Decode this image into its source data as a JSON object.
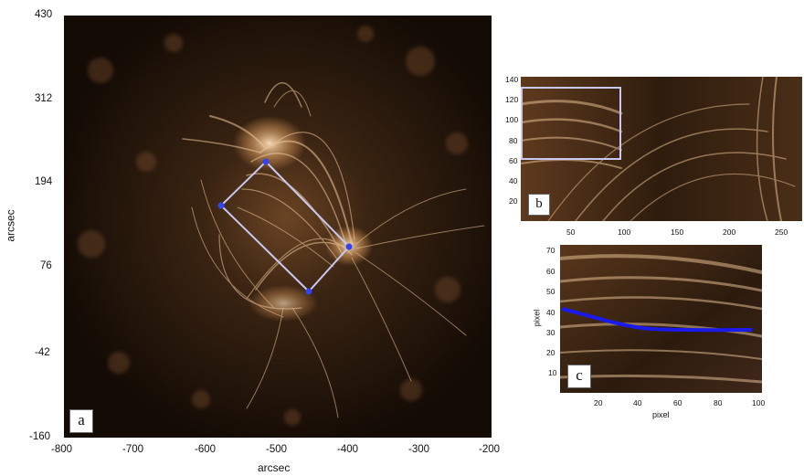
{
  "panel_a": {
    "label": "a",
    "xlabel": "arcsec",
    "ylabel": "arcsec",
    "x_ticks": [
      "-800",
      "-700",
      "-600",
      "-500",
      "-400",
      "-300",
      "-200"
    ],
    "y_ticks": [
      "430",
      "312",
      "194",
      "76",
      "-42",
      "-160"
    ]
  },
  "panel_b": {
    "label": "b",
    "x_ticks": [
      "50",
      "100",
      "150",
      "200",
      "250"
    ],
    "y_ticks": [
      "140",
      "120",
      "100",
      "80",
      "60",
      "40",
      "20"
    ]
  },
  "panel_c": {
    "label": "c",
    "xlabel": "pixel",
    "ylabel": "pixel",
    "x_ticks": [
      "20",
      "40",
      "60",
      "80",
      "100"
    ],
    "y_ticks": [
      "70",
      "60",
      "50",
      "40",
      "30",
      "20",
      "10"
    ]
  },
  "colors": {
    "image_base": "#120a05",
    "loop_glow": "#f0c89a",
    "selection_box": "#c8c8f0",
    "vertex_marker": "#3344ee",
    "trace_line": "#1a1aee"
  }
}
